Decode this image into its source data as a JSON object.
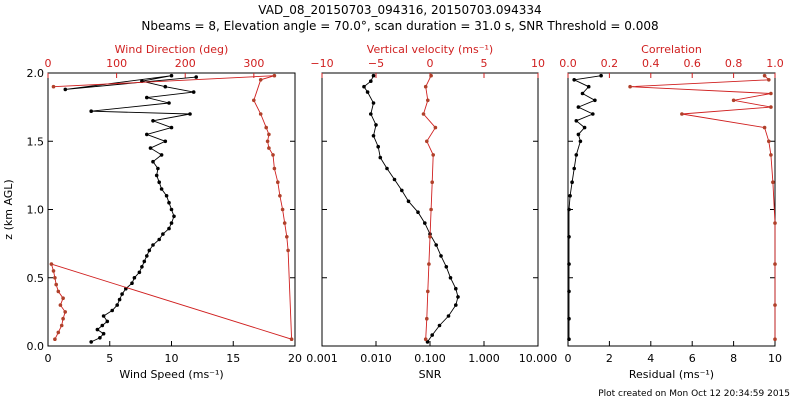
{
  "title_line1": "VAD_08_20150703_094316, 20150703.094334",
  "title_line2": "Nbeams = 8, Elevation angle = 70.0°, scan duration = 31.0 s, SNR Threshold = 0.008",
  "footer": "Plot created on Mon Oct 12 20:34:59 2015",
  "colors": {
    "black": "#000000",
    "red": "#d02020",
    "brown": "#b0402a"
  },
  "chart_data": [
    {
      "type": "line",
      "ylabel": "z (km AGL)",
      "ylim": [
        0,
        2
      ],
      "yticks": [
        "0.0",
        "0.5",
        "1.0",
        "1.5",
        "2.0"
      ],
      "bottom_axis": {
        "label": "Wind Speed (ms⁻¹)",
        "lim": [
          0,
          20
        ],
        "ticks": [
          "0",
          "5",
          "10",
          "15",
          "20"
        ]
      },
      "top_axis": {
        "label": "Wind Direction (deg)",
        "lim": [
          0,
          360
        ],
        "ticks": [
          "0",
          "100",
          "200",
          "300"
        ]
      },
      "series": [
        {
          "axis": "bottom",
          "values": [
            [
              3.5,
              0.03
            ],
            [
              4.2,
              0.06
            ],
            [
              4.5,
              0.09
            ],
            [
              4.0,
              0.12
            ],
            [
              4.4,
              0.15
            ],
            [
              4.8,
              0.18
            ],
            [
              4.5,
              0.22
            ],
            [
              5.2,
              0.26
            ],
            [
              5.6,
              0.3
            ],
            [
              5.8,
              0.34
            ],
            [
              6.0,
              0.38
            ],
            [
              6.3,
              0.42
            ],
            [
              6.8,
              0.46
            ],
            [
              7.0,
              0.5
            ],
            [
              7.4,
              0.54
            ],
            [
              7.6,
              0.58
            ],
            [
              7.8,
              0.62
            ],
            [
              8.0,
              0.66
            ],
            [
              8.2,
              0.7
            ],
            [
              8.5,
              0.74
            ],
            [
              9.0,
              0.78
            ],
            [
              9.3,
              0.82
            ],
            [
              9.8,
              0.86
            ],
            [
              10.0,
              0.9
            ],
            [
              10.2,
              0.95
            ],
            [
              10.0,
              1.0
            ],
            [
              9.8,
              1.05
            ],
            [
              9.6,
              1.1
            ],
            [
              9.2,
              1.15
            ],
            [
              9.0,
              1.2
            ],
            [
              8.8,
              1.25
            ],
            [
              8.9,
              1.3
            ],
            [
              8.5,
              1.35
            ],
            [
              9.2,
              1.4
            ],
            [
              8.3,
              1.45
            ],
            [
              9.5,
              1.5
            ],
            [
              8.0,
              1.55
            ],
            [
              10.0,
              1.6
            ],
            [
              8.5,
              1.65
            ],
            [
              11.5,
              1.7
            ],
            [
              3.5,
              1.72
            ],
            [
              9.8,
              1.78
            ],
            [
              8.0,
              1.82
            ],
            [
              11.8,
              1.86
            ],
            [
              9.5,
              1.9
            ],
            [
              7.6,
              1.94
            ],
            [
              10.0,
              1.98
            ],
            [
              1.4,
              1.88
            ],
            [
              12.0,
              1.97
            ]
          ]
        },
        {
          "axis": "top",
          "values": [
            [
              10,
              0.05
            ],
            [
              15,
              0.1
            ],
            [
              20,
              0.15
            ],
            [
              22,
              0.2
            ],
            [
              25,
              0.25
            ],
            [
              18,
              0.3
            ],
            [
              22,
              0.35
            ],
            [
              15,
              0.4
            ],
            [
              12,
              0.45
            ],
            [
              10,
              0.5
            ],
            [
              8,
              0.55
            ],
            [
              5,
              0.6
            ],
            [
              355,
              0.05
            ],
            [
              350,
              0.7
            ],
            [
              348,
              0.8
            ],
            [
              345,
              0.9
            ],
            [
              342,
              1.0
            ],
            [
              338,
              1.1
            ],
            [
              335,
              1.2
            ],
            [
              330,
              1.3
            ],
            [
              328,
              1.4
            ],
            [
              322,
              1.45
            ],
            [
              320,
              1.5
            ],
            [
              322,
              1.55
            ],
            [
              318,
              1.6
            ],
            [
              310,
              1.7
            ],
            [
              300,
              1.8
            ],
            [
              310,
              1.95
            ],
            [
              330,
              1.98
            ],
            [
              8,
              1.9
            ]
          ]
        }
      ]
    },
    {
      "type": "line",
      "bottom_axis": {
        "label": "SNR",
        "scale": "log",
        "lim": [
          0.001,
          10
        ],
        "ticks": [
          "0.001",
          "0.010",
          "0.100",
          "1.000",
          "10.000"
        ]
      },
      "top_axis": {
        "label": "Vertical velocity (ms⁻¹)",
        "lim": [
          -10,
          10
        ],
        "ticks": [
          "−10",
          "−5",
          "0",
          "5",
          "10"
        ]
      },
      "series": [
        {
          "axis": "bottom",
          "values": [
            [
              0.09,
              0.03
            ],
            [
              0.11,
              0.08
            ],
            [
              0.15,
              0.15
            ],
            [
              0.22,
              0.22
            ],
            [
              0.3,
              0.3
            ],
            [
              0.33,
              0.36
            ],
            [
              0.3,
              0.42
            ],
            [
              0.24,
              0.5
            ],
            [
              0.2,
              0.58
            ],
            [
              0.16,
              0.66
            ],
            [
              0.13,
              0.74
            ],
            [
              0.1,
              0.82
            ],
            [
              0.08,
              0.9
            ],
            [
              0.06,
              0.98
            ],
            [
              0.04,
              1.06
            ],
            [
              0.03,
              1.14
            ],
            [
              0.022,
              1.22
            ],
            [
              0.016,
              1.3
            ],
            [
              0.012,
              1.38
            ],
            [
              0.011,
              1.46
            ],
            [
              0.009,
              1.54
            ],
            [
              0.01,
              1.62
            ],
            [
              0.008,
              1.7
            ],
            [
              0.009,
              1.78
            ],
            [
              0.007,
              1.86
            ],
            [
              0.006,
              1.9
            ],
            [
              0.008,
              1.94
            ],
            [
              0.009,
              1.98
            ]
          ]
        },
        {
          "axis": "top",
          "values": [
            [
              -0.4,
              0.05
            ],
            [
              -0.3,
              0.2
            ],
            [
              -0.2,
              0.4
            ],
            [
              -0.1,
              0.6
            ],
            [
              0,
              0.8
            ],
            [
              0.1,
              1.0
            ],
            [
              0.2,
              1.2
            ],
            [
              0.3,
              1.4
            ],
            [
              -0.3,
              1.5
            ],
            [
              0.5,
              1.6
            ],
            [
              -0.6,
              1.7
            ],
            [
              -0.2,
              1.8
            ],
            [
              -0.4,
              1.9
            ],
            [
              0.1,
              1.98
            ]
          ]
        }
      ]
    },
    {
      "type": "line",
      "bottom_axis": {
        "label": "Residual (ms⁻¹)",
        "lim": [
          0,
          10
        ],
        "ticks": [
          "0",
          "2",
          "4",
          "6",
          "8",
          "10"
        ]
      },
      "top_axis": {
        "label": "Correlation",
        "lim": [
          0,
          1
        ],
        "ticks": [
          "0.0",
          "0.2",
          "0.4",
          "0.6",
          "0.8",
          "1.0"
        ]
      },
      "series": [
        {
          "axis": "bottom",
          "values": [
            [
              0.05,
              0.05
            ],
            [
              0.05,
              0.2
            ],
            [
              0.05,
              0.4
            ],
            [
              0.05,
              0.6
            ],
            [
              0.05,
              0.8
            ],
            [
              0.05,
              1.0
            ],
            [
              0.1,
              1.1
            ],
            [
              0.2,
              1.2
            ],
            [
              0.3,
              1.3
            ],
            [
              0.4,
              1.4
            ],
            [
              0.6,
              1.5
            ],
            [
              0.5,
              1.55
            ],
            [
              0.8,
              1.6
            ],
            [
              0.4,
              1.65
            ],
            [
              1.2,
              1.7
            ],
            [
              0.5,
              1.75
            ],
            [
              1.3,
              1.8
            ],
            [
              0.7,
              1.85
            ],
            [
              1.0,
              1.9
            ],
            [
              0.3,
              1.95
            ],
            [
              1.6,
              1.98
            ]
          ]
        },
        {
          "axis": "top",
          "values": [
            [
              1.0,
              0.05
            ],
            [
              1.0,
              0.3
            ],
            [
              1.0,
              0.6
            ],
            [
              1.0,
              0.9
            ],
            [
              0.99,
              1.2
            ],
            [
              0.98,
              1.4
            ],
            [
              0.97,
              1.5
            ],
            [
              0.95,
              1.6
            ],
            [
              0.55,
              1.7
            ],
            [
              0.98,
              1.75
            ],
            [
              0.8,
              1.8
            ],
            [
              0.98,
              1.85
            ],
            [
              0.3,
              1.9
            ],
            [
              0.97,
              1.95
            ],
            [
              0.95,
              1.98
            ]
          ]
        }
      ]
    }
  ]
}
